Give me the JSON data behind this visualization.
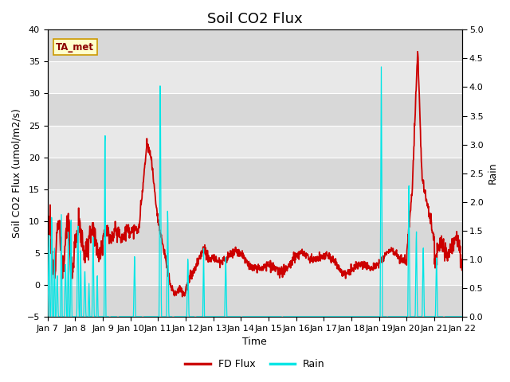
{
  "title": "Soil CO2 Flux",
  "xlabel": "Time",
  "ylabel_left": "Soil CO2 Flux (umol/m2/s)",
  "ylabel_right": "Rain",
  "ylim_left": [
    -5,
    40
  ],
  "ylim_right": [
    0.0,
    5.0
  ],
  "yticks_left": [
    -5,
    0,
    5,
    10,
    15,
    20,
    25,
    30,
    35,
    40
  ],
  "yticks_right": [
    0.0,
    0.5,
    1.0,
    1.5,
    2.0,
    2.5,
    3.0,
    3.5,
    4.0,
    4.5,
    5.0
  ],
  "xtick_labels": [
    "Jan 7",
    "Jan 8",
    "Jan 9",
    "Jan 10",
    "Jan 11",
    "Jan 12",
    "Jan 13",
    "Jan 14",
    "Jan 15",
    "Jan 16",
    "Jan 17",
    "Jan 18",
    "Jan 19",
    "Jan 20",
    "Jan 21",
    "Jan 22"
  ],
  "annotation_text": "TA_met",
  "flux_color": "#cc0000",
  "rain_color": "#00e5e5",
  "bg_stripe_light": "#f0f0f0",
  "bg_stripe_dark": "#d8d8d8",
  "grid_color": "#ffffff",
  "title_fontsize": 13,
  "label_fontsize": 9,
  "tick_fontsize": 8,
  "band_ranges": [
    [
      -5,
      0
    ],
    [
      0,
      5
    ],
    [
      5,
      10
    ],
    [
      10,
      15
    ],
    [
      15,
      20
    ],
    [
      20,
      25
    ],
    [
      25,
      30
    ],
    [
      30,
      35
    ],
    [
      35,
      40
    ]
  ],
  "band_colors": [
    "#d8d8d8",
    "#e8e8e8",
    "#d8d8d8",
    "#e8e8e8",
    "#d8d8d8",
    "#e8e8e8",
    "#d8d8d8",
    "#e8e8e8",
    "#d8d8d8"
  ]
}
